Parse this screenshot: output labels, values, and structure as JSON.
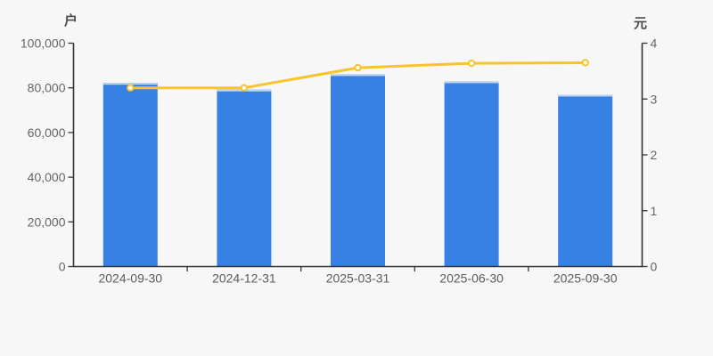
{
  "chart_data": {
    "type": "bar",
    "title": "",
    "categories": [
      "2024-09-30",
      "2024-12-31",
      "2025-03-31",
      "2025-06-30",
      "2025-09-30"
    ],
    "series": [
      {
        "name": "bar-series",
        "type": "bar",
        "y_axis": "left",
        "values": [
          82200,
          79200,
          86100,
          82900,
          76900
        ]
      },
      {
        "name": "line-series",
        "type": "line",
        "y_axis": "right",
        "values": [
          3.2,
          3.2,
          3.56,
          3.64,
          3.65
        ]
      }
    ],
    "left_axis": {
      "unit": "户",
      "min": 0,
      "max": 100000,
      "tick_values": [
        0,
        20000,
        40000,
        60000,
        80000,
        100000
      ],
      "tick_labels": [
        "0",
        "20,000",
        "40,000",
        "60,000",
        "80,000",
        "100,000"
      ]
    },
    "right_axis": {
      "unit": "元",
      "min": 0,
      "max": 4,
      "tick_values": [
        0,
        1,
        2,
        3,
        4
      ],
      "tick_labels": [
        "0",
        "1",
        "2",
        "3",
        "4"
      ]
    },
    "legend": "none",
    "grid": false
  },
  "colors": {
    "background": "#f7f7f7",
    "bar": "#3780e4",
    "bar_top_edge": "#bdd4f4",
    "line": "#f9c32d",
    "marker_fill": "#ffffff",
    "axis": "#333333",
    "tick_text": "#666666",
    "x_label_text": "#5a5a5a",
    "unit_text": "#4c4c4c"
  }
}
